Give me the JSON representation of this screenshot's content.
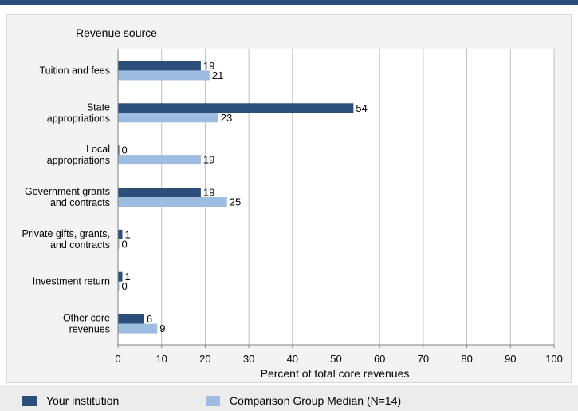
{
  "chart_data": {
    "type": "bar",
    "orientation": "horizontal",
    "category_axis_title": "Revenue source",
    "xlabel": "Percent of total core revenues",
    "xlim": [
      0,
      100
    ],
    "xticks": [
      0,
      10,
      20,
      30,
      40,
      50,
      60,
      70,
      80,
      90,
      100
    ],
    "grid": true,
    "legend_position": "bottom",
    "categories": [
      [
        "Tuition and fees"
      ],
      [
        "State",
        "appropriations"
      ],
      [
        "Local",
        "appropriations"
      ],
      [
        "Government grants",
        "and contracts"
      ],
      [
        "Private gifts, grants,",
        "and contracts"
      ],
      [
        "Investment return"
      ],
      [
        "Other core",
        "revenues"
      ]
    ],
    "series": [
      {
        "name": "Your institution",
        "color": "#2b4f7a",
        "values": [
          19,
          54,
          0,
          19,
          1,
          1,
          6
        ]
      },
      {
        "name": "Comparison Group Median (N=14)",
        "color": "#9ebbe0",
        "values": [
          21,
          23,
          19,
          25,
          0,
          0,
          9
        ]
      }
    ]
  }
}
